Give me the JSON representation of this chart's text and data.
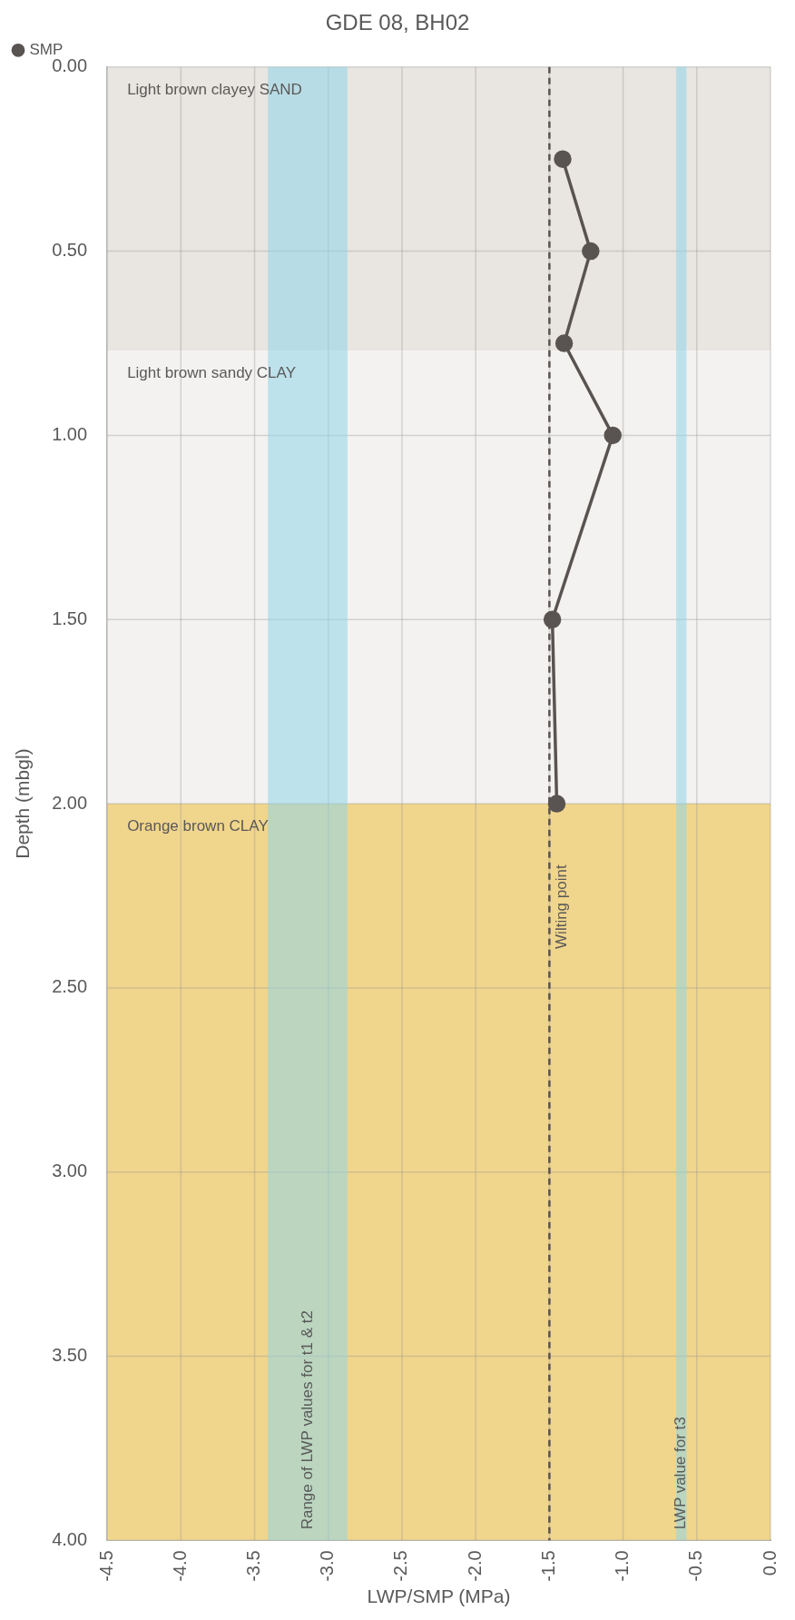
{
  "chart_data": {
    "type": "line",
    "title": "GDE 08, BH02",
    "xlabel": "LWP/SMP (MPa)",
    "ylabel": "Depth (mbgl)",
    "xlim": [
      -4.5,
      0
    ],
    "xticks": [
      {
        "value": -4.5,
        "label": "-4.5"
      },
      {
        "value": -4,
        "label": "-4.0"
      },
      {
        "value": -3.5,
        "label": "-3.5"
      },
      {
        "value": -3,
        "label": "-3.0"
      },
      {
        "value": -2.5,
        "label": "-2.5"
      },
      {
        "value": -2,
        "label": "-2.0"
      },
      {
        "value": -1.5,
        "label": "-1.5"
      },
      {
        "value": -1,
        "label": "-1.0"
      },
      {
        "value": -0.5,
        "label": "-0.5"
      },
      {
        "value": 0,
        "label": "0.0"
      }
    ],
    "ylim": [
      4,
      0
    ],
    "yticks": [
      {
        "value": 0,
        "label": "0.00"
      },
      {
        "value": 0.5,
        "label": "0.50"
      },
      {
        "value": 1,
        "label": "1.00"
      },
      {
        "value": 1.5,
        "label": "1.50"
      },
      {
        "value": 2,
        "label": "2.00"
      },
      {
        "value": 2.5,
        "label": "2.50"
      },
      {
        "value": 3,
        "label": "3.00"
      },
      {
        "value": 3.5,
        "label": "3.50"
      },
      {
        "value": 4,
        "label": "4.00"
      }
    ],
    "series": [
      {
        "name": "SMP",
        "color": "#595451",
        "x": [
          -1.41,
          -1.22,
          -1.4,
          -1.07,
          -1.48,
          -1.45
        ],
        "values": [
          0.25,
          0.5,
          0.75,
          1,
          1.5,
          2
        ]
      }
    ],
    "bands": [
      {
        "axis": "y",
        "from": 0,
        "to": 0.77,
        "label": "Light brown clayey SAND",
        "color": "#e9e5e0"
      },
      {
        "axis": "y",
        "from": 0.77,
        "to": 2,
        "label": "Light brown sandy CLAY",
        "color": "#f4f2f0"
      },
      {
        "axis": "y",
        "from": 2,
        "to": 4,
        "label": "Orange brown CLAY",
        "color": "#f0d58c"
      },
      {
        "axis": "x",
        "from": -3.41,
        "to": -2.87,
        "label": "Range of LWP values for t1 & t2",
        "color": "#8fd6ea"
      },
      {
        "axis": "x",
        "from": -0.64,
        "to": -0.57,
        "label": "LWP value for t3",
        "color": "#8fd6ea"
      }
    ],
    "ref_lines": [
      {
        "axis": "x",
        "value": -1.5,
        "label": "Wilting point",
        "color": "#595451",
        "line_style": "dashed"
      }
    ],
    "grid": true,
    "legend": "top left",
    "marker": "circle",
    "line_style": "solid"
  }
}
